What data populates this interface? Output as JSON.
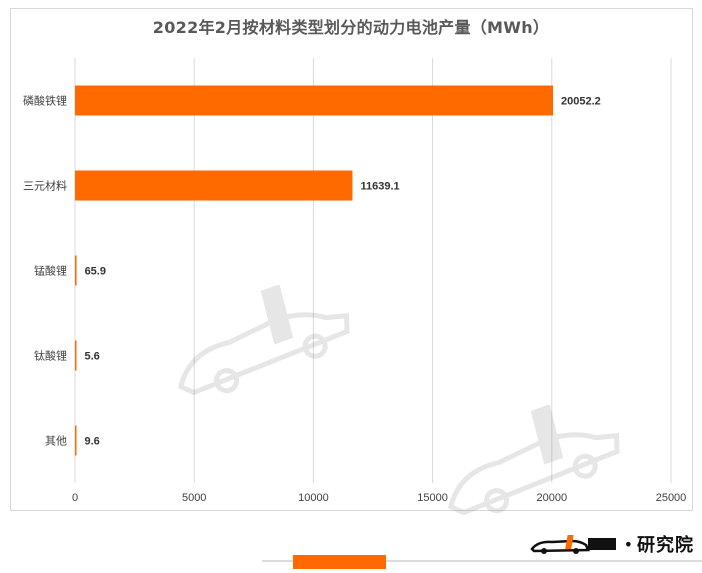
{
  "title": "2022年2月按材料类型划分的动力电池产量（MWh）",
  "brand": {
    "text": "研究院"
  },
  "colors": {
    "bar": "#ff6a00",
    "grid": "#d9d9d9",
    "text": "#404040"
  },
  "chart_data": {
    "type": "bar",
    "orientation": "horizontal",
    "title": "2022年2月按材料类型划分的动力电池产量（MWh）",
    "categories": [
      "磷酸铁锂",
      "三元材料",
      "锰酸锂",
      "钛酸锂",
      "其他"
    ],
    "values": [
      20052.2,
      11639.1,
      65.9,
      5.6,
      9.6
    ],
    "value_labels": [
      "20052.2",
      "11639.1",
      "65.9",
      "5.6",
      "9.6"
    ],
    "xlim": [
      0,
      25000
    ],
    "xticks": [
      0,
      5000,
      10000,
      15000,
      20000,
      25000
    ],
    "xtick_labels": [
      "0",
      "5000",
      "10000",
      "15000",
      "20000",
      "25000"
    ],
    "grid": true,
    "legend": false
  }
}
